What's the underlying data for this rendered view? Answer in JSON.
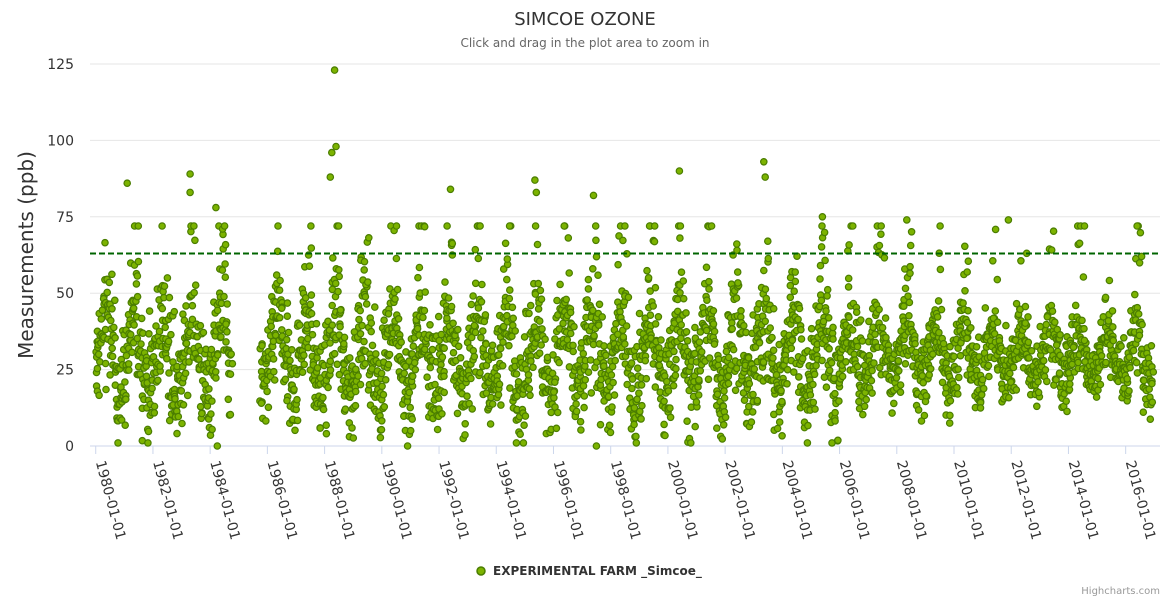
{
  "chart_data": {
    "type": "scatter",
    "title": "SIMCOE OZONE",
    "subtitle": "Click and drag in the plot area to zoom in",
    "ylabel": "Measurements (ppb)",
    "xlabel": "",
    "ylim": [
      0,
      125
    ],
    "yticks": [
      0,
      25,
      50,
      75,
      100,
      125
    ],
    "xlim_years": [
      1979.8,
      2017.2
    ],
    "xticks": [
      "1980-01-01",
      "1982-01-01",
      "1984-01-01",
      "1986-01-01",
      "1988-01-01",
      "1990-01-01",
      "1992-01-01",
      "1994-01-01",
      "1996-01-01",
      "1998-01-01",
      "2000-01-01",
      "2002-01-01",
      "2004-01-01",
      "2006-01-01",
      "2008-01-01",
      "2010-01-01",
      "2012-01-01",
      "2014-01-01",
      "2016-01-01"
    ],
    "threshold": 63,
    "grid": true,
    "legend_position": "bottom-center",
    "series": [
      {
        "name": "EXPERIMENTAL FARM _Simcoe_",
        "color": "#7cb300",
        "marker_stroke": "#4a7d00",
        "start_year": 1980.0,
        "end_year": 2016.95,
        "gap": [
          1984.75,
          1985.75
        ],
        "seasonal_base": 25,
        "seasonal_amplitude": 12,
        "noise": 9,
        "notable_points": [
          {
            "year": 1981.1,
            "value": 86
          },
          {
            "year": 1983.3,
            "value": 89
          },
          {
            "year": 1983.3,
            "value": 83
          },
          {
            "year": 1984.2,
            "value": 78
          },
          {
            "year": 1988.35,
            "value": 123
          },
          {
            "year": 1988.4,
            "value": 98
          },
          {
            "year": 1988.25,
            "value": 96
          },
          {
            "year": 1988.2,
            "value": 88
          },
          {
            "year": 1992.4,
            "value": 84
          },
          {
            "year": 1995.35,
            "value": 87
          },
          {
            "year": 1995.4,
            "value": 83
          },
          {
            "year": 1997.4,
            "value": 82
          },
          {
            "year": 2000.4,
            "value": 90
          },
          {
            "year": 2003.35,
            "value": 93
          },
          {
            "year": 2003.4,
            "value": 88
          },
          {
            "year": 2005.4,
            "value": 75
          },
          {
            "year": 2008.35,
            "value": 74
          },
          {
            "year": 2011.9,
            "value": 74
          },
          {
            "year": 1984.25,
            "value": 0
          },
          {
            "year": 1997.5,
            "value": 0
          },
          {
            "year": 1990.9,
            "value": 0
          }
        ]
      }
    ]
  },
  "credits": "Highcharts.com"
}
